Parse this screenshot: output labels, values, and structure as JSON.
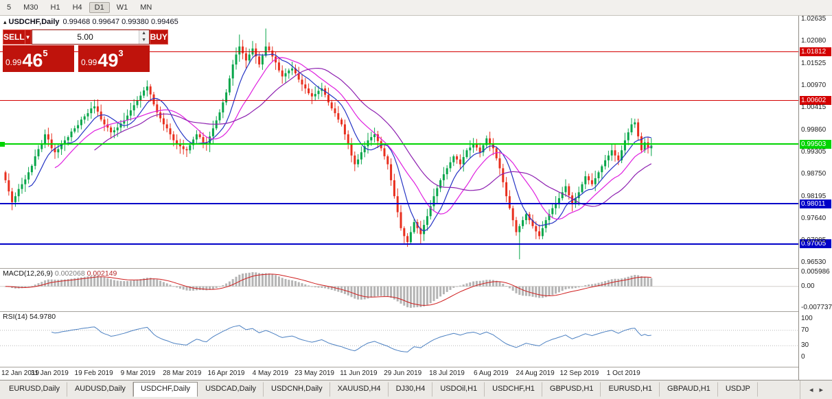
{
  "toolbar": {
    "periods": [
      {
        "label": "5",
        "active": false
      },
      {
        "label": "M30",
        "active": false
      },
      {
        "label": "H1",
        "active": false
      },
      {
        "label": "H4",
        "active": false
      },
      {
        "label": "D1",
        "active": true
      },
      {
        "label": "W1",
        "active": false
      },
      {
        "label": "MN",
        "active": false
      }
    ]
  },
  "chart": {
    "symbol_label": "USDCHF,Daily",
    "ohlc_text": "0.99468 0.99647 0.99380 0.99465",
    "trade_panel": {
      "sell_label": "SELL",
      "buy_label": "BUY",
      "volume": "5.00",
      "dropdown_glyph": "▼",
      "spin_up_glyph": "▲",
      "spin_down_glyph": "▼",
      "bid": {
        "prefix": "0.99",
        "big": "46",
        "sup": "5"
      },
      "ask": {
        "prefix": "0.99",
        "big": "49",
        "sup": "3"
      }
    },
    "axis_ticks": [
      "1.02635",
      "1.02080",
      "1.01525",
      "1.00970",
      "1.00415",
      "0.99860",
      "0.99305",
      "0.98750",
      "0.98195",
      "0.97640",
      "0.97085",
      "0.96530"
    ]
  },
  "macd_panel": {
    "name": "MACD(12,26,9)",
    "value_main": "0.002068",
    "value_signal": "0.002149",
    "ticks": [
      "0.005986",
      "0.00",
      "-0.007737"
    ]
  },
  "rsi_panel": {
    "name": "RSI(14)",
    "value": "54.9780",
    "ticks": [
      100,
      70,
      30,
      0
    ],
    "levels": [
      70,
      30
    ]
  },
  "tabs": {
    "items": [
      "EURUSD,Daily",
      "AUDUSD,Daily",
      "USDCHF,Daily",
      "USDCAD,Daily",
      "USDCNH,Daily",
      "XAUUSD,H4",
      "DJ30,H4",
      "USDOil,H1",
      "USDCHF,H1",
      "GBPUSD,H1",
      "EURUSD,H1",
      "GBPAUD,H1",
      "USDJP"
    ],
    "active_index": 2,
    "scroll_left_glyph": "◂",
    "scroll_right_glyph": "▸"
  },
  "colors": {
    "bull": "#07a64a",
    "bear": "#e82f1e",
    "ma_fast": "#2433c4",
    "ma_mid": "#df1fdf",
    "ma_slow": "#8d1fb0",
    "level_red": "#d40000",
    "level_green": "#00d400",
    "level_blue": "#0000c8",
    "macd_hist": "#b4b4b4",
    "macd_signal": "#cf1d1d",
    "rsi_line": "#4a7fc1"
  },
  "chart_data": {
    "type": "candlestick",
    "symbol": "USDCHF",
    "timeframe": "Daily",
    "ohlc_display": {
      "open": 0.99468,
      "high": 0.99647,
      "low": 0.9938,
      "close": 0.99465
    },
    "ylim": [
      0.964,
      1.0272
    ],
    "x_labels": [
      "12 Jan 2019",
      "31 Jan 2019",
      "19 Feb 2019",
      "9 Mar 2019",
      "28 Mar 2019",
      "16 Apr 2019",
      "4 May 2019",
      "23 May 2019",
      "11 Jun 2019",
      "29 Jun 2019",
      "18 Jul 2019",
      "6 Aug 2019",
      "24 Aug 2019",
      "12 Sep 2019",
      "1 Oct 2019"
    ],
    "first_open": 0.988,
    "closes": [
      0.986,
      0.9832,
      0.9805,
      0.982,
      0.9838,
      0.985,
      0.9862,
      0.988,
      0.9896,
      0.992,
      0.9938,
      0.9952,
      0.9975,
      0.9962,
      0.994,
      0.993,
      0.9938,
      0.9952,
      0.996,
      0.9968,
      0.9982,
      0.999,
      0.9998,
      1.0012,
      1.002,
      1.0028,
      1.004,
      1.0045,
      1.0032,
      1.0012,
      1.0,
      0.9992,
      0.998,
      0.9985,
      0.9992,
      1.0002,
      1.001,
      1.0022,
      1.0035,
      1.0048,
      1.006,
      1.0072,
      1.0085,
      1.0095,
      1.0075,
      1.005,
      1.003,
      1.0015,
      1.0,
      0.999,
      0.9975,
      0.996,
      0.995,
      0.9945,
      0.9938,
      0.9935,
      0.9948,
      0.9962,
      0.9975,
      0.9968,
      0.9955,
      0.995,
      0.997,
      0.999,
      1.001,
      1.003,
      1.0055,
      1.008,
      1.0115,
      1.015,
      1.0175,
      1.0195,
      1.0178,
      1.016,
      1.0175,
      1.019,
      1.017,
      1.015,
      1.0172,
      1.0195,
      1.0185,
      1.017,
      1.0155,
      1.0135,
      1.012,
      1.0128,
      1.0135,
      1.014,
      1.0128,
      1.0112,
      1.01,
      1.009,
      1.0078,
      1.007,
      1.0076,
      1.0084,
      1.009,
      1.0074,
      1.0055,
      1.004,
      1.0028,
      1.0012,
      1.0,
      0.9975,
      0.995,
      0.9922,
      0.99,
      0.9912,
      0.993,
      0.9945,
      0.996,
      0.9968,
      0.9975,
      0.9958,
      0.994,
      0.992,
      0.99,
      0.986,
      0.982,
      0.978,
      0.974,
      0.972,
      0.9705,
      0.973,
      0.9755,
      0.974,
      0.9725,
      0.9748,
      0.977,
      0.9795,
      0.982,
      0.984,
      0.986,
      0.9875,
      0.989,
      0.9905,
      0.992,
      0.9912,
      0.99,
      0.9918,
      0.9935,
      0.9942,
      0.995,
      0.9942,
      0.993,
      0.9948,
      0.9965,
      0.9952,
      0.994,
      0.9915,
      0.989,
      0.9855,
      0.982,
      0.979,
      0.976,
      0.973,
      0.9745,
      0.976,
      0.9775,
      0.976,
      0.9745,
      0.9732,
      0.972,
      0.974,
      0.976,
      0.9775,
      0.979,
      0.9802,
      0.9815,
      0.983,
      0.9845,
      0.9822,
      0.98,
      0.9815,
      0.983,
      0.985,
      0.987,
      0.986,
      0.985,
      0.9865,
      0.988,
      0.9895,
      0.991,
      0.9922,
      0.9935,
      0.9922,
      0.991,
      0.9935,
      0.996,
      0.998,
      1.0,
      1.0005,
      0.997,
      0.9935,
      0.9955,
      0.994,
      0.9947
    ],
    "high_overrides": {
      "12": 0.9987,
      "27": 1.0062,
      "43": 1.011,
      "71": 1.0225,
      "79": 1.024,
      "191": 1.0014
    },
    "low_overrides": {
      "2": 0.9785,
      "122": 0.9693,
      "126": 0.97,
      "156": 0.9662,
      "162": 0.9712
    },
    "levels": [
      {
        "price": 1.01812,
        "label": "1.01812",
        "color_key": "level_red",
        "width": 1,
        "left_marker": false
      },
      {
        "price": 1.00602,
        "label": "1.00602",
        "color_key": "level_red",
        "width": 1,
        "left_marker": false
      },
      {
        "price": 0.99503,
        "label": "0.99503",
        "color_key": "level_green",
        "width": 2,
        "left_marker": true
      },
      {
        "price": 0.98011,
        "label": "0.98011",
        "color_key": "level_blue",
        "width": 2,
        "left_marker": false
      },
      {
        "price": 0.97005,
        "label": "0.97005",
        "color_key": "level_blue",
        "width": 2,
        "left_marker": false
      }
    ],
    "moving_averages": [
      {
        "period": 8,
        "color_key": "ma_fast"
      },
      {
        "period": 16,
        "color_key": "ma_mid"
      },
      {
        "period": 28,
        "color_key": "ma_slow"
      }
    ],
    "indicators": {
      "macd": {
        "fast": 12,
        "slow": 26,
        "signal": 9,
        "last_main": 0.002068,
        "last_signal": 0.002149
      },
      "rsi": {
        "period": 14,
        "last": 54.978
      }
    }
  }
}
